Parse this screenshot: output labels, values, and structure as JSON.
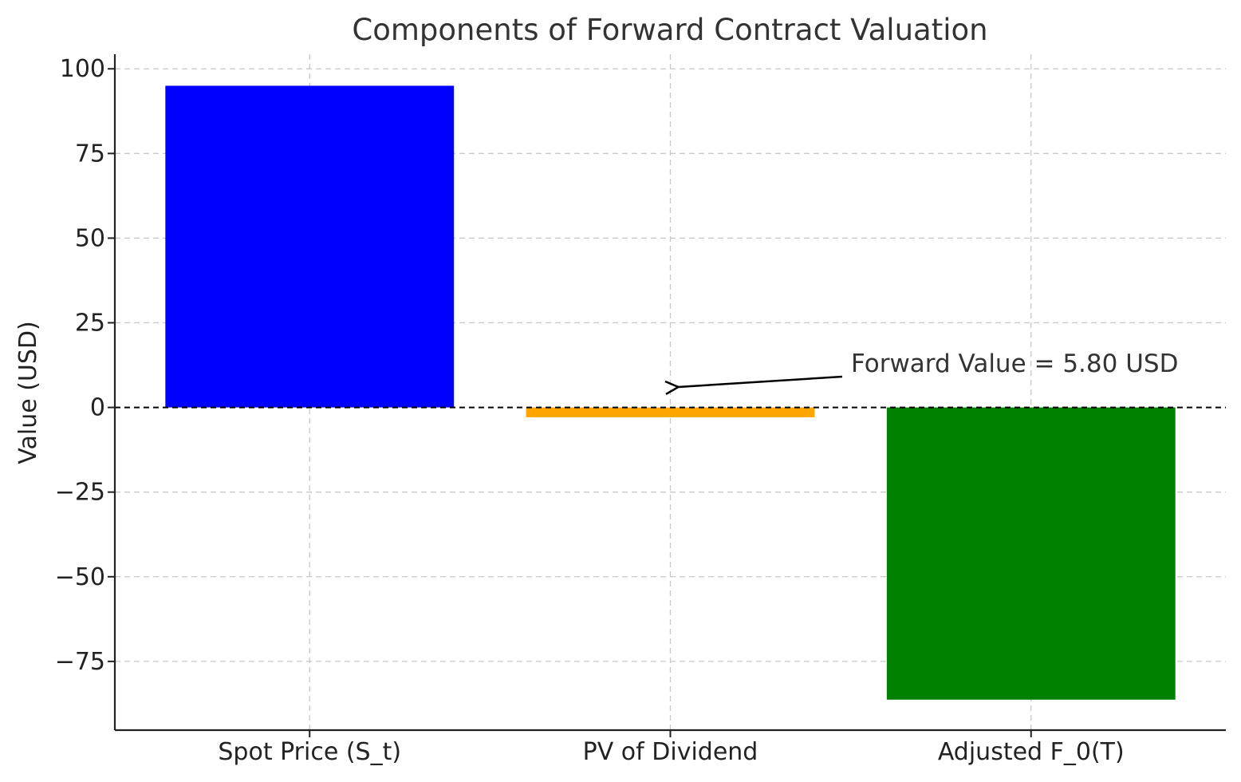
{
  "chart_data": {
    "type": "bar",
    "title": "Components of Forward Contract Valuation",
    "xlabel": "",
    "ylabel": "Value (USD)",
    "categories": [
      "Spot Price (S_t)",
      "PV of Dividend",
      "Adjusted F_0(T)"
    ],
    "values": [
      95.0,
      -2.9,
      -86.3
    ],
    "colors": [
      "#0000ff",
      "#ffa500",
      "#008000"
    ],
    "ylim": [
      -95.3,
      104.3
    ],
    "yticks": [
      100,
      75,
      50,
      25,
      0,
      -25,
      -50,
      -75
    ],
    "ytick_labels": [
      "100",
      "75",
      "50",
      "25",
      "0",
      "−25",
      "−50",
      "−75"
    ],
    "grid": true,
    "zero_line": true,
    "annotation": {
      "text": "Forward Value = 5.80 USD",
      "target_category": "PV of Dividend",
      "target_value": 5.8
    }
  }
}
